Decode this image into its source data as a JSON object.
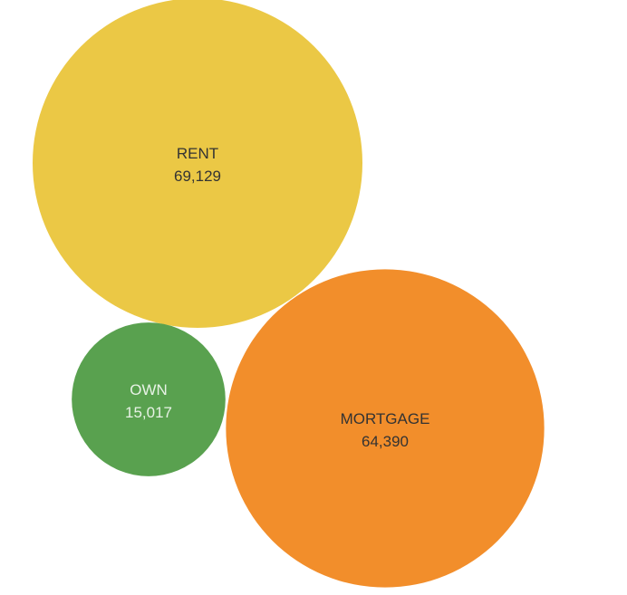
{
  "chart_data": {
    "type": "bubble",
    "title": "",
    "items": [
      {
        "category": "RENT",
        "value": "69,129",
        "value_num": 69129,
        "color": "#ebc845",
        "label_color": "#333333"
      },
      {
        "category": "OWN",
        "value": "15,017",
        "value_num": 15017,
        "color": "#59a14f",
        "label_color": "#e8f2e6"
      },
      {
        "category": "MORTGAGE",
        "value": "64,390",
        "value_num": 64390,
        "color": "#f28e2b",
        "label_color": "#333333"
      }
    ]
  }
}
